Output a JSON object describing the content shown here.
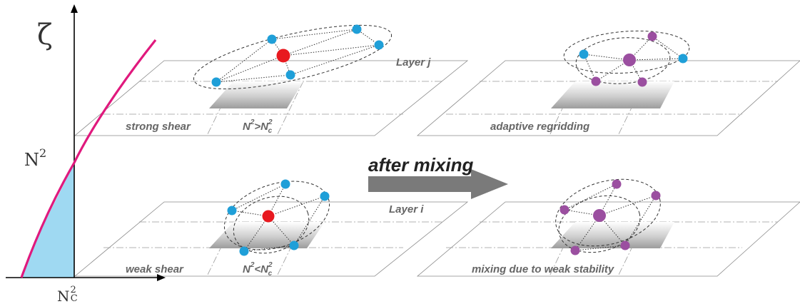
{
  "axis": {
    "zeta_label": "ζ",
    "n2_label": "N",
    "n2_sup": "2",
    "nc_label": "N",
    "nc_sup": "2",
    "nc_sub": "C"
  },
  "panels": {
    "top_left": {
      "caption": "strong shear",
      "condition_main": "N",
      "condition_sup": "2",
      "condition_rel": ">N",
      "condition_sup2": "2",
      "condition_sub2": "c",
      "layer": "Layer j"
    },
    "top_right": {
      "caption": "adaptive regridding"
    },
    "bottom_left": {
      "caption": "weak shear",
      "condition_main": "N",
      "condition_sup": "2",
      "condition_rel": "<N",
      "condition_sup2": "2",
      "condition_sub2": "c",
      "layer": "Layer i"
    },
    "bottom_right": {
      "caption": "mixing due to weak stability"
    }
  },
  "arrow": {
    "label": "after mixing"
  },
  "colors": {
    "curve": "#e0197d",
    "fill": "#9fd9f2",
    "blue_node": "#1f9fd8",
    "red_node": "#e8191f",
    "purple_node": "#9b4fa0",
    "arrow": "#7a7a7a"
  }
}
